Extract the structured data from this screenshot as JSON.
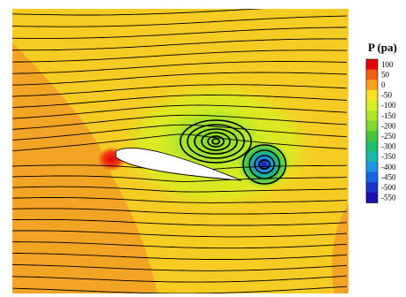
{
  "chart_data": {
    "type": "heatmap",
    "title": "P (pa)",
    "colorbar": {
      "label": "P (pa)",
      "levels": [
        100,
        50,
        0,
        -50,
        -100,
        -150,
        -200,
        -250,
        -300,
        -350,
        -400,
        -450,
        -500,
        -550
      ],
      "tick_labels": [
        "100",
        "50",
        "0",
        "-50",
        "-100",
        "-150",
        "-200",
        "-250",
        "-300",
        "-350",
        "-400",
        "-450",
        "-500",
        "-550"
      ],
      "colors": [
        "#e8000b",
        "#f06212",
        "#f8a21e",
        "#fbe11f",
        "#d7ef22",
        "#aee62a",
        "#7ed82f",
        "#46c63a",
        "#1fbf6a",
        "#1ab7a9",
        "#1d94e4",
        "#1a63e0",
        "#1b34c8",
        "#1a10b0"
      ],
      "position": "right"
    },
    "background_color": "#f7cc22",
    "airfoil_color": "#ffffff",
    "streamline_color": "#000000",
    "vortices": [
      {
        "name": "upper vortex",
        "core_level": -200
      },
      {
        "name": "trailing vortex",
        "core_level": -550
      }
    ]
  }
}
